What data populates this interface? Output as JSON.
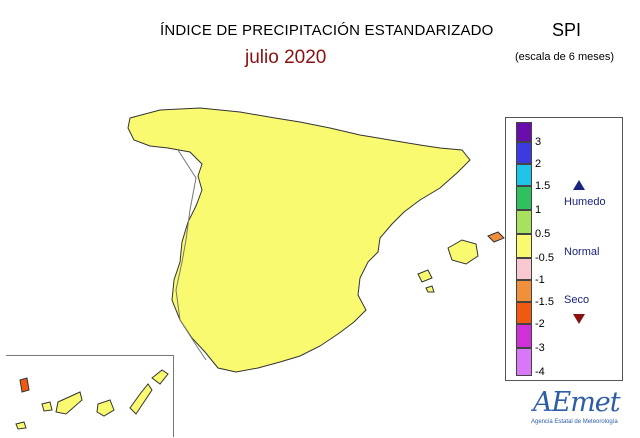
{
  "title": "ÍNDICE DE PRECIPITACIÓN ESTANDARIZADO",
  "subtitle": "julio 2020",
  "index_name": "SPI",
  "scale_note": "(escala de 6 meses)",
  "legend": {
    "ticks": [
      "3",
      "2",
      "1.5",
      "1",
      "0.5",
      "-0.5",
      "-1",
      "-1.5",
      "-2",
      "-3",
      "-4"
    ],
    "colors": [
      "#6a0dad",
      "#3b3bdf",
      "#20c4e8",
      "#30c060",
      "#a8e060",
      "#fafa70",
      "#f8c8d0",
      "#f0903a",
      "#f05a10",
      "#d030d8",
      "#d878f8"
    ],
    "categories": {
      "wet": "Humedo",
      "normal": "Normal",
      "dry": "Seco"
    }
  },
  "map": {
    "colors": {
      "normal": "#fafa70",
      "slightly_wet": "#c8ec6a",
      "wet": "#30c060",
      "very_wet": "#20c4e8",
      "slightly_dry": "#f8c8d0",
      "dry": "#f0903a",
      "very_dry": "#f05a10",
      "border": "#aaaaaa",
      "coast": "#333333"
    }
  },
  "logo": {
    "name": "AEmet",
    "caption": "Agencia Estatal de Meteorología"
  }
}
